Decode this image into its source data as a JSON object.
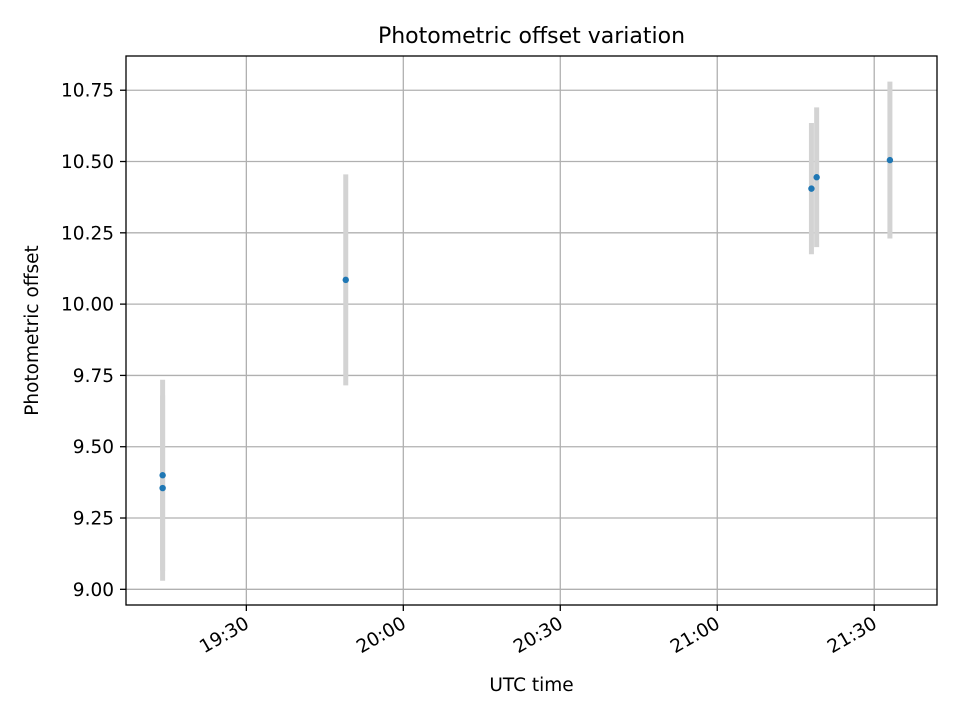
{
  "chart_data": {
    "type": "scatter",
    "title": "Photometric offset variation",
    "xlabel": "UTC time",
    "ylabel": "Photometric offset",
    "x_type": "time",
    "xlim": [
      "19:07",
      "21:42"
    ],
    "ylim": [
      8.945,
      10.87
    ],
    "x_ticks": [
      "19:30",
      "20:00",
      "20:30",
      "21:00",
      "21:30"
    ],
    "y_ticks": [
      "9.00",
      "9.25",
      "9.50",
      "9.75",
      "10.00",
      "10.25",
      "10.50",
      "10.75"
    ],
    "grid": true,
    "legend": "none",
    "colors": {
      "point": "#1f77b4",
      "errorbar": "#d3d3d3",
      "grid": "#b0b0b0",
      "axes": "#000000"
    },
    "series": [
      {
        "points": [
          {
            "x": "19:14",
            "y": 9.4,
            "yerr": 0.335
          },
          {
            "x": "19:14",
            "y": 9.355,
            "yerr": 0.325
          },
          {
            "x": "19:49",
            "y": 10.085,
            "yerr": 0.37
          },
          {
            "x": "21:19",
            "y": 10.445,
            "yerr": 0.245
          },
          {
            "x": "21:18",
            "y": 10.405,
            "yerr": 0.23
          },
          {
            "x": "21:33",
            "y": 10.505,
            "yerr": 0.275
          }
        ]
      }
    ]
  }
}
